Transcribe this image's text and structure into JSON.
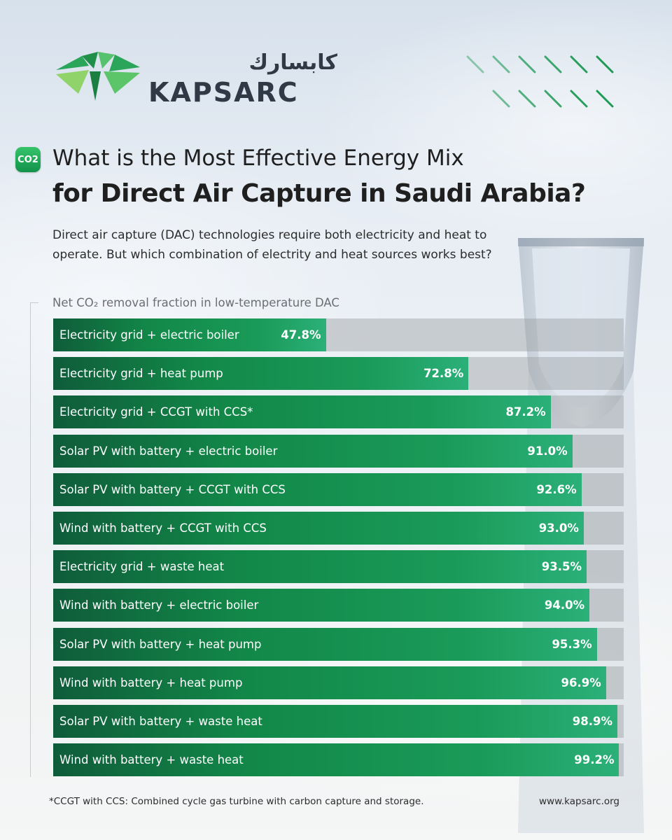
{
  "brand": {
    "arabic_name": "كابسارك",
    "english_name": "KAPSARC",
    "accent_green": "#1a9a58",
    "dark_green": "#0f5c3a"
  },
  "header": {
    "badge": "CO2",
    "title_line1": "What is the Most Effective Energy Mix",
    "title_line2": "for Direct Air Capture in Saudi Arabia?",
    "subtitle": "Direct air capture (DAC) technologies require both electricity and heat to operate. But which combination of electrity and heat sources works best?"
  },
  "chart_data": {
    "type": "bar",
    "orientation": "horizontal",
    "title": "Net CO₂ removal fraction in low-temperature DAC",
    "unit": "%",
    "xlim": [
      0,
      100
    ],
    "categories": [
      "Electricity grid + electric boiler",
      "Electricity grid + heat pump",
      "Electricity grid + CCGT with CCS*",
      "Solar PV with battery + electric boiler",
      "Solar PV with battery + CCGT with CCS",
      "Wind with battery + CCGT with CCS",
      "Electricity grid + waste heat",
      "Wind with battery + electric boiler",
      "Solar PV with battery + heat pump",
      "Wind with battery + heat pump",
      "Solar PV with battery + waste heat",
      "Wind with battery + waste heat"
    ],
    "values": [
      47.8,
      72.8,
      87.2,
      91.0,
      92.6,
      93.0,
      93.5,
      94.0,
      95.3,
      96.9,
      98.9,
      99.2
    ],
    "labels": [
      "47.8%",
      "72.8%",
      "87.2%",
      "91.0%",
      "92.6%",
      "93.0%",
      "93.5%",
      "94.0%",
      "95.3%",
      "96.9%",
      "98.9%",
      "99.2%"
    ]
  },
  "footer": {
    "footnote": "*CCGT with CCS: Combined cycle gas turbine with carbon capture and storage.",
    "website": "www.kapsarc.org"
  }
}
